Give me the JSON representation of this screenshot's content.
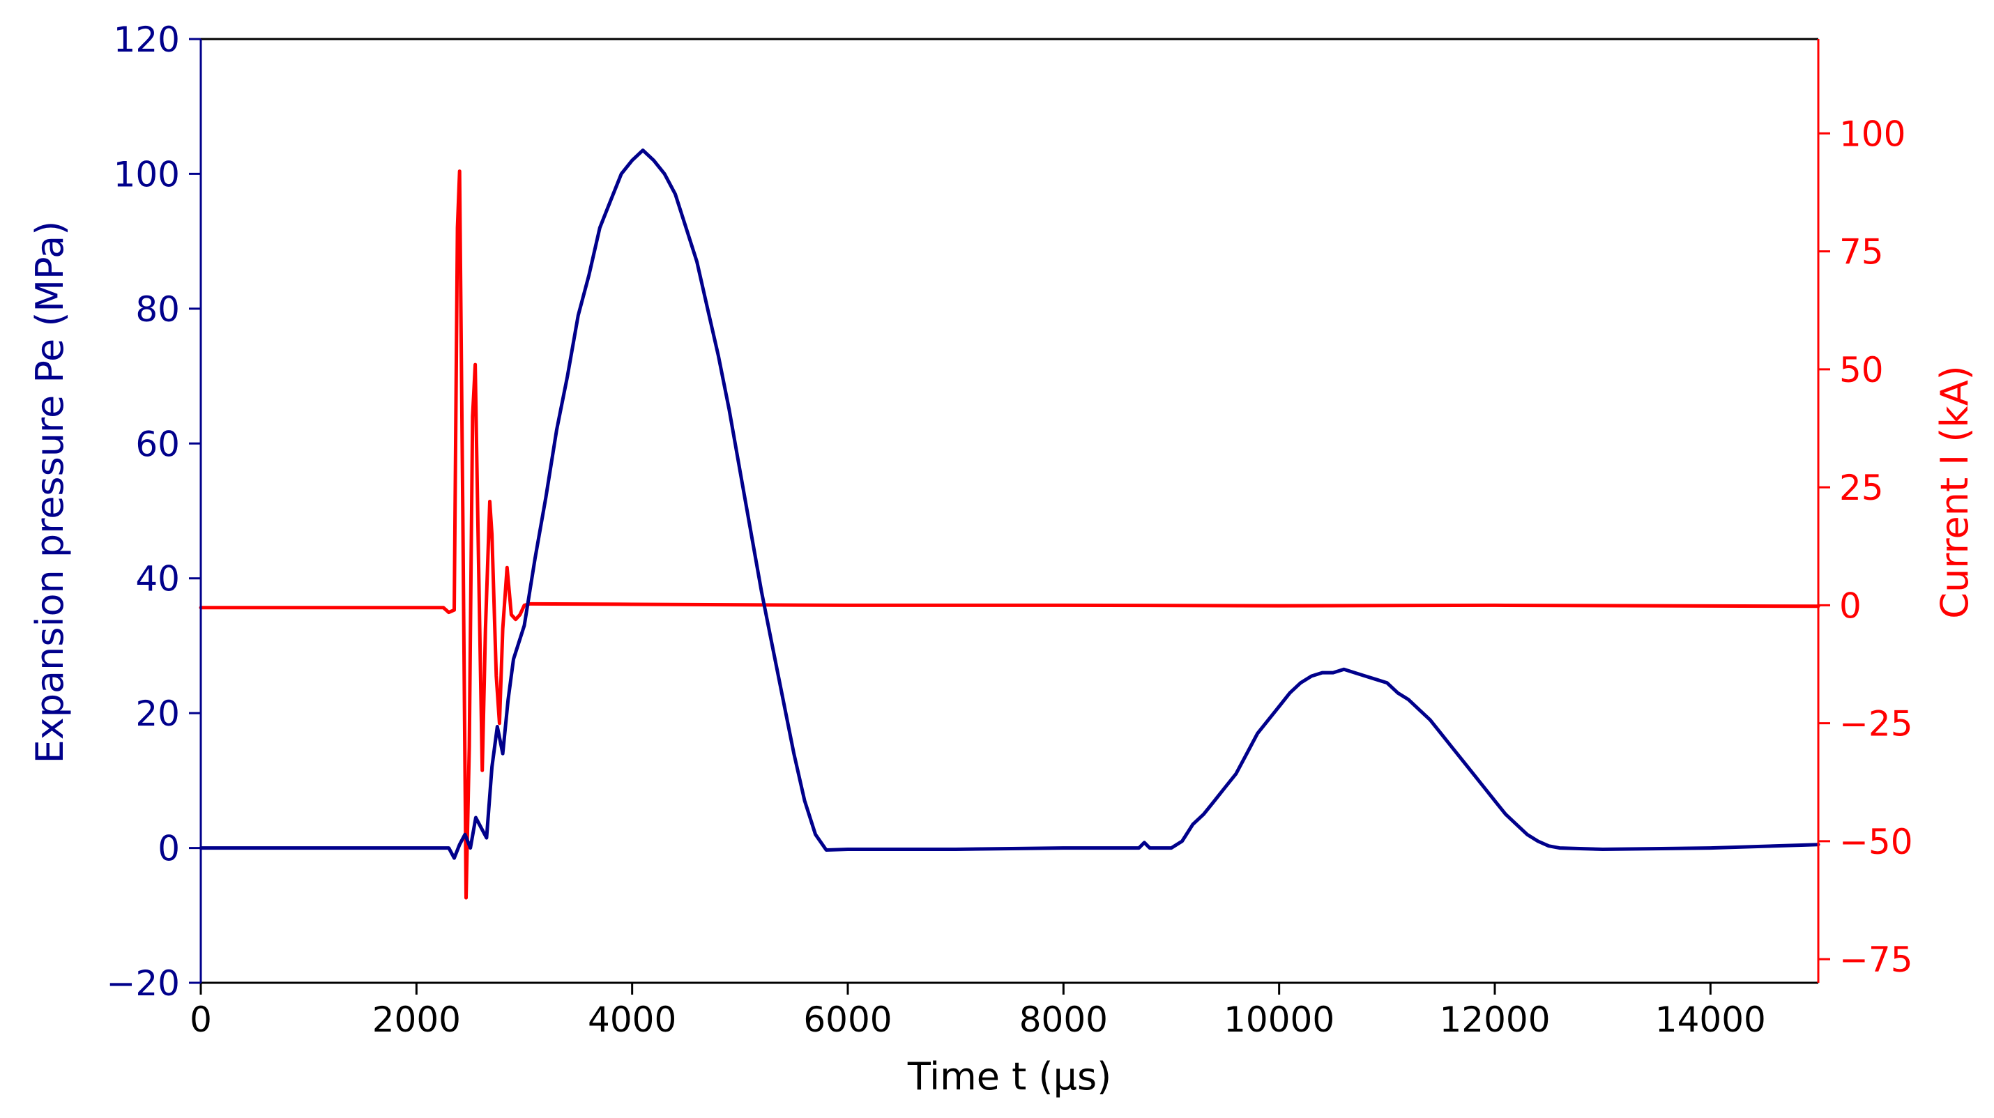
{
  "chart_data": {
    "type": "line",
    "xlabel": "Time t (µs)",
    "ylabel_left": "Expansion pressure Pe (MPa)",
    "ylabel_right": "Current I (kA)",
    "xlim": [
      0,
      15000
    ],
    "ylim_left": [
      -20,
      120
    ],
    "ylim_right": [
      -80,
      120
    ],
    "x_ticks": [
      0,
      2000,
      4000,
      6000,
      8000,
      10000,
      12000,
      14000
    ],
    "y_left_ticks": [
      -20,
      0,
      20,
      40,
      60,
      80,
      100,
      120
    ],
    "y_right_ticks": [
      -75,
      -50,
      -25,
      0,
      25,
      50,
      75,
      100
    ],
    "x_tick_labels": [
      "0",
      "2000",
      "4000",
      "6000",
      "8000",
      "10000",
      "12000",
      "14000"
    ],
    "y_left_tick_labels": [
      "−20",
      "0",
      "20",
      "40",
      "60",
      "80",
      "100",
      "120"
    ],
    "y_right_tick_labels": [
      "−75",
      "−50",
      "−25",
      "0",
      "25",
      "50",
      "75",
      "100"
    ],
    "grid": false,
    "legend": "none",
    "colors": {
      "pressure": "#00008b",
      "current": "#ff0000",
      "axes": "#000000"
    },
    "series": [
      {
        "axis": "left",
        "color": "#00008b",
        "points": [
          [
            0,
            0
          ],
          [
            2300,
            0
          ],
          [
            2350,
            -1.5
          ],
          [
            2400,
            0.5
          ],
          [
            2450,
            2
          ],
          [
            2500,
            0
          ],
          [
            2550,
            4.5
          ],
          [
            2600,
            3
          ],
          [
            2650,
            1.5
          ],
          [
            2700,
            12
          ],
          [
            2750,
            18
          ],
          [
            2800,
            14
          ],
          [
            2850,
            22
          ],
          [
            2900,
            28
          ],
          [
            3000,
            33
          ],
          [
            3100,
            43
          ],
          [
            3200,
            52
          ],
          [
            3300,
            62
          ],
          [
            3400,
            70
          ],
          [
            3500,
            79
          ],
          [
            3600,
            85
          ],
          [
            3700,
            92
          ],
          [
            3800,
            96
          ],
          [
            3900,
            100
          ],
          [
            4000,
            102
          ],
          [
            4100,
            103.5
          ],
          [
            4200,
            102
          ],
          [
            4300,
            100
          ],
          [
            4400,
            97
          ],
          [
            4500,
            92
          ],
          [
            4600,
            87
          ],
          [
            4700,
            80
          ],
          [
            4800,
            73
          ],
          [
            4900,
            65
          ],
          [
            5000,
            56
          ],
          [
            5100,
            47
          ],
          [
            5200,
            38
          ],
          [
            5300,
            30
          ],
          [
            5400,
            22
          ],
          [
            5500,
            14
          ],
          [
            5600,
            7
          ],
          [
            5700,
            2
          ],
          [
            5800,
            -0.3
          ],
          [
            6000,
            -0.2
          ],
          [
            7000,
            -0.2
          ],
          [
            8000,
            0
          ],
          [
            8700,
            0
          ],
          [
            8750,
            0.8
          ],
          [
            8800,
            0
          ],
          [
            9000,
            0
          ],
          [
            9100,
            1
          ],
          [
            9200,
            3.5
          ],
          [
            9300,
            5
          ],
          [
            9400,
            7
          ],
          [
            9500,
            9
          ],
          [
            9600,
            11
          ],
          [
            9700,
            14
          ],
          [
            9800,
            17
          ],
          [
            9900,
            19
          ],
          [
            10000,
            21
          ],
          [
            10100,
            23
          ],
          [
            10200,
            24.5
          ],
          [
            10300,
            25.5
          ],
          [
            10400,
            26
          ],
          [
            10500,
            26
          ],
          [
            10600,
            26.5
          ],
          [
            10700,
            26
          ],
          [
            10800,
            25.5
          ],
          [
            10900,
            25
          ],
          [
            11000,
            24.5
          ],
          [
            11100,
            23
          ],
          [
            11200,
            22
          ],
          [
            11300,
            20.5
          ],
          [
            11400,
            19
          ],
          [
            11500,
            17
          ],
          [
            11600,
            15
          ],
          [
            11700,
            13
          ],
          [
            11800,
            11
          ],
          [
            11900,
            9
          ],
          [
            12000,
            7
          ],
          [
            12100,
            5
          ],
          [
            12200,
            3.5
          ],
          [
            12300,
            2
          ],
          [
            12400,
            1
          ],
          [
            12500,
            0.3
          ],
          [
            12600,
            0
          ],
          [
            13000,
            -0.2
          ],
          [
            14000,
            0
          ],
          [
            15000,
            0.5
          ]
        ]
      },
      {
        "axis": "right",
        "color": "#ff0000",
        "points": [
          [
            0,
            -0.5
          ],
          [
            2250,
            -0.5
          ],
          [
            2300,
            -1.5
          ],
          [
            2350,
            -1
          ],
          [
            2380,
            80
          ],
          [
            2400,
            92
          ],
          [
            2430,
            20
          ],
          [
            2460,
            -62
          ],
          [
            2490,
            -30
          ],
          [
            2520,
            40
          ],
          [
            2545,
            51
          ],
          [
            2575,
            10
          ],
          [
            2610,
            -35
          ],
          [
            2640,
            -5
          ],
          [
            2680,
            22
          ],
          [
            2700,
            15
          ],
          [
            2740,
            -15
          ],
          [
            2770,
            -25
          ],
          [
            2800,
            -5
          ],
          [
            2840,
            8
          ],
          [
            2880,
            -2
          ],
          [
            2920,
            -3
          ],
          [
            2960,
            -2
          ],
          [
            3000,
            0
          ],
          [
            3050,
            0.3
          ],
          [
            4000,
            0.2
          ],
          [
            6000,
            0
          ],
          [
            8000,
            0
          ],
          [
            10000,
            -0.1
          ],
          [
            12000,
            0
          ],
          [
            15000,
            -0.2
          ]
        ]
      }
    ]
  }
}
